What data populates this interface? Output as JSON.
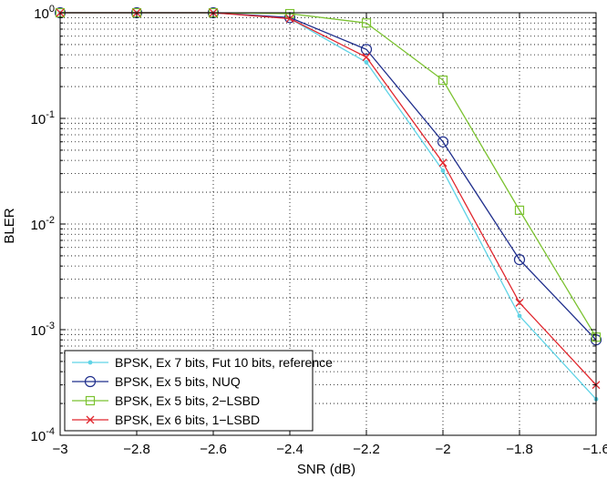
{
  "chart_data": {
    "type": "line",
    "title": "",
    "xlabel": "SNR (dB)",
    "ylabel": "BLER",
    "xlim": [
      -3,
      -1.6
    ],
    "ylim": [
      0.0001,
      1
    ],
    "yscale": "log",
    "grid": true,
    "legend_position": "bottom-left",
    "x": [
      -3,
      -2.8,
      -2.6,
      -2.4,
      -2.2,
      -2,
      -1.8,
      -1.6
    ],
    "x_tick_labels": [
      "−3",
      "−2.8",
      "−2.6",
      "−2.4",
      "−2.2",
      "−2",
      "−1.8",
      "−1.6"
    ],
    "y_ticks": [
      {
        "base": "10",
        "exp": "-4",
        "value": 0.0001
      },
      {
        "base": "10",
        "exp": "-3",
        "value": 0.001
      },
      {
        "base": "10",
        "exp": "-2",
        "value": 0.01
      },
      {
        "base": "10",
        "exp": "-1",
        "value": 0.1
      },
      {
        "base": "10",
        "exp": "0",
        "value": 1
      }
    ],
    "series": [
      {
        "name": "BPSK, Ex 7 bits, Fut 10 bits, reference",
        "color": "#5fd3e6",
        "marker": "point",
        "values": [
          1,
          1,
          1,
          0.88,
          0.34,
          0.032,
          0.00135,
          0.00022
        ]
      },
      {
        "name": "BPSK, Ex 5 bits, NUQ",
        "color": "#1f2e8c",
        "marker": "circle",
        "values": [
          1,
          1,
          1,
          0.9,
          0.45,
          0.06,
          0.0046,
          0.0008
        ]
      },
      {
        "name": "BPSK, Ex 5 bits, 2−LSBD",
        "color": "#7bc230",
        "marker": "square",
        "values": [
          1,
          1,
          1,
          0.98,
          0.8,
          0.23,
          0.0135,
          0.00085
        ]
      },
      {
        "name": "BPSK, Ex 6 bits, 1−LSBD",
        "color": "#e0262d",
        "marker": "x",
        "values": [
          1,
          1,
          1,
          0.88,
          0.38,
          0.038,
          0.0018,
          0.0003
        ]
      }
    ]
  }
}
